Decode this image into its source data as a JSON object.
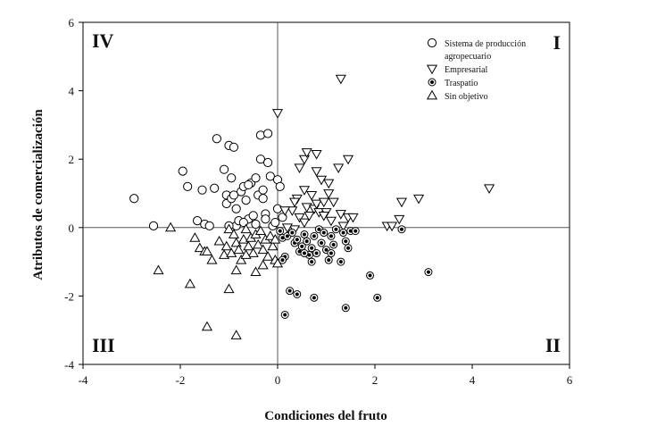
{
  "chart_data": {
    "type": "scatter",
    "title": "",
    "xlabel": "Condiciones del fruto",
    "ylabel": "Atributos de comercialización",
    "xlim": [
      -4,
      6
    ],
    "ylim": [
      -4,
      6
    ],
    "xticks": [
      "-4",
      "-2",
      "0",
      "2",
      "4",
      "6"
    ],
    "yticks": [
      "-4",
      "-2",
      "0",
      "2",
      "4",
      "6"
    ],
    "grid": false,
    "reference_lines": {
      "x": 0,
      "y": 0
    },
    "legend_position": "top-right",
    "quadrant_labels": {
      "top_right": "I",
      "bottom_right": "II",
      "bottom_left": "III",
      "top_left": "IV"
    },
    "series": [
      {
        "name": "Sistema de producción agropecuario",
        "legend_lines": [
          "Sistema de producción",
          "agropecuario"
        ],
        "marker": "circle",
        "points": [
          [
            -2.95,
            0.85
          ],
          [
            -2.55,
            0.05
          ],
          [
            -1.95,
            1.65
          ],
          [
            -1.85,
            1.2
          ],
          [
            -1.65,
            0.2
          ],
          [
            -1.55,
            1.1
          ],
          [
            -1.5,
            0.1
          ],
          [
            -1.4,
            0.05
          ],
          [
            -1.3,
            1.15
          ],
          [
            -1.25,
            2.6
          ],
          [
            -1.1,
            1.7
          ],
          [
            -1.05,
            0.95
          ],
          [
            -1.05,
            0.7
          ],
          [
            -1.0,
            2.4
          ],
          [
            -0.95,
            1.45
          ],
          [
            -0.95,
            0.85
          ],
          [
            -0.9,
            2.35
          ],
          [
            -0.85,
            0.55
          ],
          [
            -0.85,
            0.05
          ],
          [
            -0.8,
            0.2
          ],
          [
            -0.75,
            1.05
          ],
          [
            -0.7,
            1.2
          ],
          [
            -0.65,
            0.8
          ],
          [
            -0.6,
            0.25
          ],
          [
            -0.55,
            1.3
          ],
          [
            -0.5,
            0.35
          ],
          [
            -0.45,
            0.1
          ],
          [
            -0.45,
            1.45
          ],
          [
            -0.4,
            0.95
          ],
          [
            -0.35,
            2.0
          ],
          [
            -0.35,
            2.7
          ],
          [
            -0.3,
            0.85
          ],
          [
            -0.25,
            0.4
          ],
          [
            -0.2,
            1.9
          ],
          [
            -0.2,
            2.75
          ],
          [
            -0.15,
            1.5
          ],
          [
            -0.1,
            0.05
          ],
          [
            -0.05,
            0.15
          ],
          [
            0.0,
            1.4
          ],
          [
            0.05,
            1.2
          ],
          [
            0.1,
            0.3
          ],
          [
            -0.7,
            0.15
          ],
          [
            -0.3,
            1.1
          ],
          [
            -0.9,
            0.95
          ],
          [
            -0.25,
            0.25
          ],
          [
            0.0,
            0.55
          ],
          [
            -1.0,
            0.05
          ],
          [
            -0.6,
            1.25
          ]
        ]
      },
      {
        "name": "Empresarial",
        "marker": "triangle-down",
        "points": [
          [
            0.0,
            3.35
          ],
          [
            1.3,
            4.35
          ],
          [
            0.45,
            1.75
          ],
          [
            0.55,
            2.0
          ],
          [
            0.6,
            2.2
          ],
          [
            0.8,
            2.15
          ],
          [
            0.8,
            1.65
          ],
          [
            1.25,
            1.75
          ],
          [
            1.45,
            2.0
          ],
          [
            0.9,
            1.4
          ],
          [
            1.05,
            1.3
          ],
          [
            0.55,
            1.1
          ],
          [
            0.7,
            0.95
          ],
          [
            0.4,
            0.85
          ],
          [
            0.35,
            0.75
          ],
          [
            0.6,
            0.6
          ],
          [
            0.75,
            0.55
          ],
          [
            0.8,
            0.7
          ],
          [
            0.95,
            0.75
          ],
          [
            1.15,
            0.75
          ],
          [
            0.3,
            0.5
          ],
          [
            0.45,
            0.3
          ],
          [
            0.55,
            0.15
          ],
          [
            0.85,
            0.45
          ],
          [
            1.0,
            0.45
          ],
          [
            1.3,
            0.4
          ],
          [
            1.45,
            0.3
          ],
          [
            1.55,
            0.3
          ],
          [
            1.35,
            0.05
          ],
          [
            0.35,
            -0.05
          ],
          [
            0.15,
            0.5
          ],
          [
            0.2,
            0.0
          ],
          [
            1.05,
            1.0
          ],
          [
            0.95,
            0.35
          ],
          [
            2.25,
            0.05
          ],
          [
            2.35,
            0.05
          ],
          [
            2.5,
            0.25
          ],
          [
            2.55,
            0.75
          ],
          [
            2.9,
            0.85
          ],
          [
            4.35,
            1.15
          ],
          [
            0.65,
            0.35
          ],
          [
            1.1,
            0.2
          ]
        ]
      },
      {
        "name": "Traspatio",
        "marker": "dotted-circle",
        "points": [
          [
            0.05,
            -0.1
          ],
          [
            0.1,
            -0.3
          ],
          [
            0.15,
            -0.85
          ],
          [
            0.1,
            -0.95
          ],
          [
            0.2,
            -0.25
          ],
          [
            0.3,
            -0.15
          ],
          [
            0.35,
            -0.45
          ],
          [
            0.4,
            -0.35
          ],
          [
            0.45,
            -0.7
          ],
          [
            0.5,
            -0.55
          ],
          [
            0.55,
            -0.2
          ],
          [
            0.6,
            -0.4
          ],
          [
            0.65,
            -0.8
          ],
          [
            0.7,
            -0.6
          ],
          [
            0.75,
            -0.25
          ],
          [
            0.8,
            -0.75
          ],
          [
            0.85,
            -0.05
          ],
          [
            0.9,
            -0.45
          ],
          [
            0.95,
            -0.15
          ],
          [
            1.0,
            -0.65
          ],
          [
            1.05,
            -0.95
          ],
          [
            1.1,
            -0.25
          ],
          [
            1.15,
            -0.5
          ],
          [
            1.2,
            -0.05
          ],
          [
            1.3,
            -1.0
          ],
          [
            1.35,
            -0.15
          ],
          [
            1.4,
            -0.4
          ],
          [
            1.45,
            -0.6
          ],
          [
            1.5,
            -0.1
          ],
          [
            1.6,
            -0.1
          ],
          [
            0.25,
            -1.85
          ],
          [
            0.4,
            -1.95
          ],
          [
            0.75,
            -2.05
          ],
          [
            1.4,
            -2.35
          ],
          [
            0.15,
            -2.55
          ],
          [
            1.9,
            -1.4
          ],
          [
            2.05,
            -2.05
          ],
          [
            2.55,
            -0.05
          ],
          [
            3.1,
            -1.3
          ],
          [
            0.55,
            -0.75
          ],
          [
            0.7,
            -1.0
          ],
          [
            1.1,
            -0.75
          ]
        ]
      },
      {
        "name": "Sin objetivo",
        "marker": "triangle-up",
        "points": [
          [
            -2.2,
            0.0
          ],
          [
            -1.7,
            -0.3
          ],
          [
            -1.6,
            -0.6
          ],
          [
            -1.5,
            -0.7
          ],
          [
            -1.45,
            -0.7
          ],
          [
            -1.35,
            -0.95
          ],
          [
            -1.2,
            -0.4
          ],
          [
            -1.1,
            -0.8
          ],
          [
            -1.05,
            -0.55
          ],
          [
            -1.0,
            -0.05
          ],
          [
            -0.95,
            -0.75
          ],
          [
            -0.9,
            -0.2
          ],
          [
            -0.85,
            -0.45
          ],
          [
            -0.8,
            -0.65
          ],
          [
            -0.75,
            -0.95
          ],
          [
            -0.7,
            -0.35
          ],
          [
            -0.65,
            -0.05
          ],
          [
            -0.6,
            -0.55
          ],
          [
            -0.55,
            -0.3
          ],
          [
            -0.5,
            -0.75
          ],
          [
            -0.45,
            -0.2
          ],
          [
            -0.4,
            -0.5
          ],
          [
            -0.35,
            -0.1
          ],
          [
            -0.3,
            -0.65
          ],
          [
            -0.25,
            -0.35
          ],
          [
            -0.2,
            -0.85
          ],
          [
            -0.15,
            -0.25
          ],
          [
            -0.1,
            -0.55
          ],
          [
            -0.05,
            -0.95
          ],
          [
            0.0,
            -1.05
          ],
          [
            -2.45,
            -1.25
          ],
          [
            -1.8,
            -1.65
          ],
          [
            -1.0,
            -1.8
          ],
          [
            -0.85,
            -1.25
          ],
          [
            -0.45,
            -1.3
          ],
          [
            -0.3,
            -1.1
          ],
          [
            -1.45,
            -2.9
          ],
          [
            -0.85,
            -3.15
          ],
          [
            -0.05,
            -0.35
          ],
          [
            -0.65,
            -0.8
          ]
        ]
      }
    ]
  }
}
